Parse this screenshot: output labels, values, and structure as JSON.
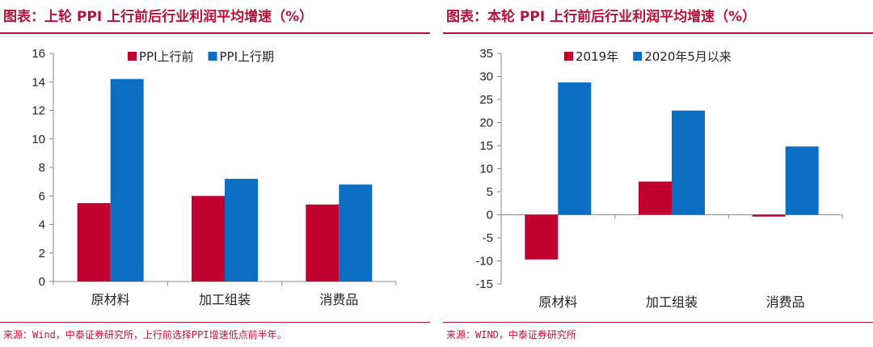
{
  "panels": [
    {
      "title": "图表：上轮 PPI 上行前后行业利润平均增速（%）",
      "footer": "来源：Wind，中泰证券研究所，上行前选择PPI增速低点前半年。"
    },
    {
      "title": "图表：本轮 PPI 上行前后行业利润平均增速（%）",
      "footer": "来源：WIND，中泰证券研究所"
    }
  ],
  "colors": {
    "series1": "#c0002f",
    "series2": "#0a6fc2",
    "axis": "#888888",
    "accent": "#b5123a"
  },
  "chart_data": [
    {
      "type": "bar",
      "categories": [
        "原材料",
        "加工组装",
        "消费品"
      ],
      "series": [
        {
          "name": "PPI上行前",
          "values": [
            5.5,
            6.0,
            5.4
          ]
        },
        {
          "name": "PPI上行期",
          "values": [
            14.2,
            7.2,
            6.8
          ]
        }
      ],
      "ylim": [
        0,
        16
      ],
      "yticks": [
        0,
        2,
        4,
        6,
        8,
        10,
        12,
        14,
        16
      ],
      "legend": "top"
    },
    {
      "type": "bar",
      "categories": [
        "原材料",
        "加工组装",
        "消费品"
      ],
      "series": [
        {
          "name": "2019年",
          "values": [
            -9.7,
            7.2,
            -0.4
          ]
        },
        {
          "name": "2020年5月以来",
          "values": [
            28.7,
            22.6,
            14.8
          ]
        }
      ],
      "ylim": [
        -15,
        35
      ],
      "yticks": [
        -15,
        -10,
        -5,
        0,
        5,
        10,
        15,
        20,
        25,
        30,
        35
      ],
      "legend": "top"
    }
  ]
}
